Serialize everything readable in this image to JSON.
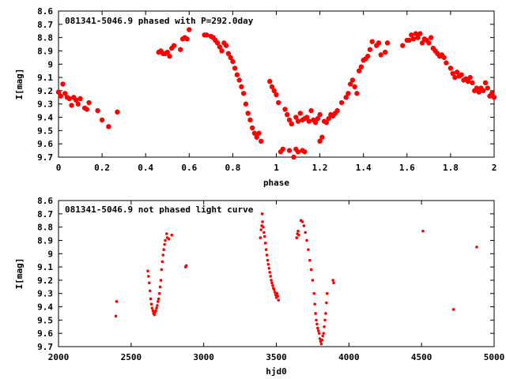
{
  "chart_data": [
    {
      "type": "scatter",
      "title": "081341-5046.9 phased with P=292.0day",
      "xlabel": "phase",
      "ylabel": "I[mag]",
      "xlim": [
        0,
        2
      ],
      "ylim": [
        9.7,
        8.6
      ],
      "y_inverted": true,
      "grid": false,
      "marker": "filled-circle",
      "color": "#ff0000",
      "xticks": [
        "0",
        "0.2",
        "0.4",
        "0.6",
        "0.8",
        "1",
        "1.2",
        "1.4",
        "1.6",
        "1.8",
        "2"
      ],
      "yticks": [
        "8.6",
        "8.7",
        "8.8",
        "8.9",
        "9",
        "9.1",
        "9.2",
        "9.3",
        "9.4",
        "9.5",
        "9.6",
        "9.7"
      ],
      "points": [
        [
          0.0,
          9.21
        ],
        [
          0.01,
          9.24
        ],
        [
          0.02,
          9.15
        ],
        [
          0.03,
          9.22
        ],
        [
          0.04,
          9.25
        ],
        [
          0.05,
          9.26
        ],
        [
          0.06,
          9.31
        ],
        [
          0.07,
          9.25
        ],
        [
          0.08,
          9.27
        ],
        [
          0.09,
          9.3
        ],
        [
          0.1,
          9.26
        ],
        [
          0.12,
          9.33
        ],
        [
          0.13,
          9.34
        ],
        [
          0.14,
          9.29
        ],
        [
          0.18,
          9.35
        ],
        [
          0.2,
          9.42
        ],
        [
          0.23,
          9.47
        ],
        [
          0.27,
          9.36
        ],
        [
          0.46,
          8.91
        ],
        [
          0.47,
          8.9
        ],
        [
          0.48,
          8.92
        ],
        [
          0.49,
          8.92
        ],
        [
          0.5,
          8.91
        ],
        [
          0.51,
          8.94
        ],
        [
          0.52,
          8.88
        ],
        [
          0.53,
          8.86
        ],
        [
          0.56,
          8.89
        ],
        [
          0.57,
          8.81
        ],
        [
          0.58,
          8.8
        ],
        [
          0.59,
          8.81
        ],
        [
          0.6,
          8.74
        ],
        [
          0.67,
          8.78
        ],
        [
          0.68,
          8.78
        ],
        [
          0.7,
          8.79
        ],
        [
          0.71,
          8.8
        ],
        [
          0.72,
          8.82
        ],
        [
          0.73,
          8.84
        ],
        [
          0.74,
          8.87
        ],
        [
          0.75,
          8.9
        ],
        [
          0.76,
          8.84
        ],
        [
          0.77,
          8.86
        ],
        [
          0.78,
          8.92
        ],
        [
          0.79,
          8.95
        ],
        [
          0.8,
          8.98
        ],
        [
          0.81,
          9.03
        ],
        [
          0.82,
          9.08
        ],
        [
          0.83,
          9.12
        ],
        [
          0.84,
          9.17
        ],
        [
          0.85,
          9.22
        ],
        [
          0.86,
          9.3
        ],
        [
          0.87,
          9.37
        ],
        [
          0.88,
          9.42
        ],
        [
          0.89,
          9.48
        ],
        [
          0.9,
          9.52
        ],
        [
          0.91,
          9.55
        ],
        [
          0.92,
          9.52
        ],
        [
          0.93,
          9.58
        ],
        [
          0.97,
          9.13
        ],
        [
          0.98,
          9.17
        ],
        [
          0.99,
          9.2
        ],
        [
          1.0,
          9.23
        ],
        [
          1.01,
          9.29
        ],
        [
          1.02,
          9.66
        ],
        [
          1.03,
          9.64
        ],
        [
          1.04,
          9.34
        ],
        [
          1.05,
          9.38
        ],
        [
          1.06,
          9.42
        ],
        [
          1.06,
          9.65
        ],
        [
          1.07,
          9.45
        ],
        [
          1.08,
          9.7
        ],
        [
          1.09,
          9.64
        ],
        [
          1.09,
          9.4
        ],
        [
          1.1,
          9.43
        ],
        [
          1.1,
          9.66
        ],
        [
          1.11,
          9.37
        ],
        [
          1.12,
          9.42
        ],
        [
          1.12,
          9.65
        ],
        [
          1.13,
          9.41
        ],
        [
          1.13,
          9.66
        ],
        [
          1.14,
          9.4
        ],
        [
          1.15,
          9.43
        ],
        [
          1.16,
          9.35
        ],
        [
          1.17,
          9.42
        ],
        [
          1.18,
          9.44
        ],
        [
          1.19,
          9.41
        ],
        [
          1.2,
          9.38
        ],
        [
          1.2,
          9.58
        ],
        [
          1.21,
          9.55
        ],
        [
          1.22,
          9.43
        ],
        [
          1.23,
          9.44
        ],
        [
          1.24,
          9.41
        ],
        [
          1.25,
          9.38
        ],
        [
          1.26,
          9.39
        ],
        [
          1.27,
          9.37
        ],
        [
          1.28,
          9.35
        ],
        [
          1.3,
          9.29
        ],
        [
          1.32,
          9.25
        ],
        [
          1.33,
          9.22
        ],
        [
          1.34,
          9.15
        ],
        [
          1.35,
          9.12
        ],
        [
          1.36,
          9.17
        ],
        [
          1.37,
          9.22
        ],
        [
          1.38,
          9.05
        ],
        [
          1.39,
          9.02
        ],
        [
          1.4,
          8.97
        ],
        [
          1.41,
          8.96
        ],
        [
          1.42,
          8.94
        ],
        [
          1.43,
          8.89
        ],
        [
          1.44,
          8.83
        ],
        [
          1.46,
          8.86
        ],
        [
          1.47,
          8.84
        ],
        [
          1.48,
          8.93
        ],
        [
          1.5,
          8.91
        ],
        [
          1.51,
          8.84
        ],
        [
          1.58,
          8.86
        ],
        [
          1.6,
          8.82
        ],
        [
          1.61,
          8.82
        ],
        [
          1.62,
          8.78
        ],
        [
          1.63,
          8.81
        ],
        [
          1.64,
          8.77
        ],
        [
          1.65,
          8.8
        ],
        [
          1.66,
          8.77
        ],
        [
          1.67,
          8.84
        ],
        [
          1.68,
          8.81
        ],
        [
          1.69,
          8.82
        ],
        [
          1.7,
          8.84
        ],
        [
          1.71,
          8.8
        ],
        [
          1.72,
          8.88
        ],
        [
          1.73,
          8.9
        ],
        [
          1.74,
          8.92
        ],
        [
          1.75,
          8.94
        ],
        [
          1.76,
          8.93
        ],
        [
          1.77,
          8.95
        ],
        [
          1.78,
          8.99
        ],
        [
          1.8,
          9.03
        ],
        [
          1.81,
          9.07
        ],
        [
          1.82,
          9.1
        ],
        [
          1.83,
          9.06
        ],
        [
          1.84,
          9.09
        ],
        [
          1.85,
          9.08
        ],
        [
          1.86,
          9.12
        ],
        [
          1.87,
          9.11
        ],
        [
          1.88,
          9.13
        ],
        [
          1.89,
          9.1
        ],
        [
          1.9,
          9.14
        ],
        [
          1.91,
          9.2
        ],
        [
          1.92,
          9.18
        ],
        [
          1.93,
          9.21
        ],
        [
          1.94,
          9.18
        ],
        [
          1.95,
          9.2
        ],
        [
          1.96,
          9.14
        ],
        [
          1.97,
          9.18
        ],
        [
          1.98,
          9.24
        ],
        [
          1.99,
          9.22
        ],
        [
          2.0,
          9.25
        ]
      ]
    },
    {
      "type": "scatter",
      "title": "081341-5046.9 not phased light curve",
      "xlabel": "hjd0",
      "ylabel": "I[mag]",
      "xlim": [
        2000,
        5000
      ],
      "ylim": [
        9.7,
        8.6
      ],
      "y_inverted": true,
      "grid": false,
      "marker": "small-dot",
      "color": "#ff0000",
      "xticks": [
        "2000",
        "2500",
        "3000",
        "3500",
        "4000",
        "4500",
        "5000"
      ],
      "yticks": [
        "8.6",
        "8.7",
        "8.8",
        "8.9",
        "9",
        "9.1",
        "9.2",
        "9.3",
        "9.4",
        "9.5",
        "9.6",
        "9.7"
      ],
      "points": [
        [
          2395,
          9.47
        ],
        [
          2400,
          9.36
        ],
        [
          2615,
          9.13
        ],
        [
          2620,
          9.17
        ],
        [
          2625,
          9.22
        ],
        [
          2630,
          9.28
        ],
        [
          2635,
          9.34
        ],
        [
          2640,
          9.38
        ],
        [
          2645,
          9.41
        ],
        [
          2650,
          9.43
        ],
        [
          2655,
          9.45
        ],
        [
          2660,
          9.46
        ],
        [
          2665,
          9.44
        ],
        [
          2670,
          9.43
        ],
        [
          2675,
          9.41
        ],
        [
          2680,
          9.39
        ],
        [
          2685,
          9.36
        ],
        [
          2690,
          9.34
        ],
        [
          2695,
          9.3
        ],
        [
          2700,
          9.25
        ],
        [
          2705,
          9.2
        ],
        [
          2710,
          9.12
        ],
        [
          2715,
          9.06
        ],
        [
          2720,
          9.01
        ],
        [
          2725,
          8.97
        ],
        [
          2730,
          8.93
        ],
        [
          2735,
          8.9
        ],
        [
          2745,
          8.85
        ],
        [
          2750,
          8.88
        ],
        [
          2760,
          8.89
        ],
        [
          2780,
          8.86
        ],
        [
          2875,
          9.1
        ],
        [
          2880,
          9.09
        ],
        [
          3390,
          8.88
        ],
        [
          3395,
          8.82
        ],
        [
          3400,
          8.79
        ],
        [
          3403,
          8.7
        ],
        [
          3405,
          8.76
        ],
        [
          3410,
          8.8
        ],
        [
          3415,
          8.84
        ],
        [
          3420,
          8.87
        ],
        [
          3425,
          8.92
        ],
        [
          3430,
          8.97
        ],
        [
          3435,
          9.01
        ],
        [
          3440,
          9.05
        ],
        [
          3445,
          9.08
        ],
        [
          3450,
          9.11
        ],
        [
          3455,
          9.14
        ],
        [
          3460,
          9.17
        ],
        [
          3465,
          9.2
        ],
        [
          3470,
          9.22
        ],
        [
          3475,
          9.24
        ],
        [
          3480,
          9.26
        ],
        [
          3485,
          9.27
        ],
        [
          3490,
          9.29
        ],
        [
          3495,
          9.31
        ],
        [
          3500,
          9.33
        ],
        [
          3505,
          9.3
        ],
        [
          3510,
          9.32
        ],
        [
          3515,
          9.35
        ],
        [
          3640,
          8.88
        ],
        [
          3645,
          8.85
        ],
        [
          3650,
          8.83
        ],
        [
          3655,
          8.86
        ],
        [
          3670,
          8.75
        ],
        [
          3680,
          8.76
        ],
        [
          3690,
          8.79
        ],
        [
          3700,
          8.84
        ],
        [
          3710,
          8.9
        ],
        [
          3720,
          8.97
        ],
        [
          3730,
          9.05
        ],
        [
          3740,
          9.12
        ],
        [
          3750,
          9.2
        ],
        [
          3760,
          9.3
        ],
        [
          3765,
          9.38
        ],
        [
          3770,
          9.45
        ],
        [
          3775,
          9.5
        ],
        [
          3780,
          9.53
        ],
        [
          3785,
          9.56
        ],
        [
          3790,
          9.58
        ],
        [
          3795,
          9.6
        ],
        [
          3800,
          9.64
        ],
        [
          3805,
          9.66
        ],
        [
          3810,
          9.68
        ],
        [
          3815,
          9.65
        ],
        [
          3820,
          9.62
        ],
        [
          3825,
          9.6
        ],
        [
          3830,
          9.55
        ],
        [
          3835,
          9.5
        ],
        [
          3840,
          9.45
        ],
        [
          3845,
          9.37
        ],
        [
          3850,
          9.3
        ],
        [
          3890,
          9.2
        ],
        [
          3895,
          9.22
        ],
        [
          4510,
          8.83
        ],
        [
          4720,
          9.42
        ],
        [
          4880,
          8.95
        ]
      ]
    }
  ]
}
